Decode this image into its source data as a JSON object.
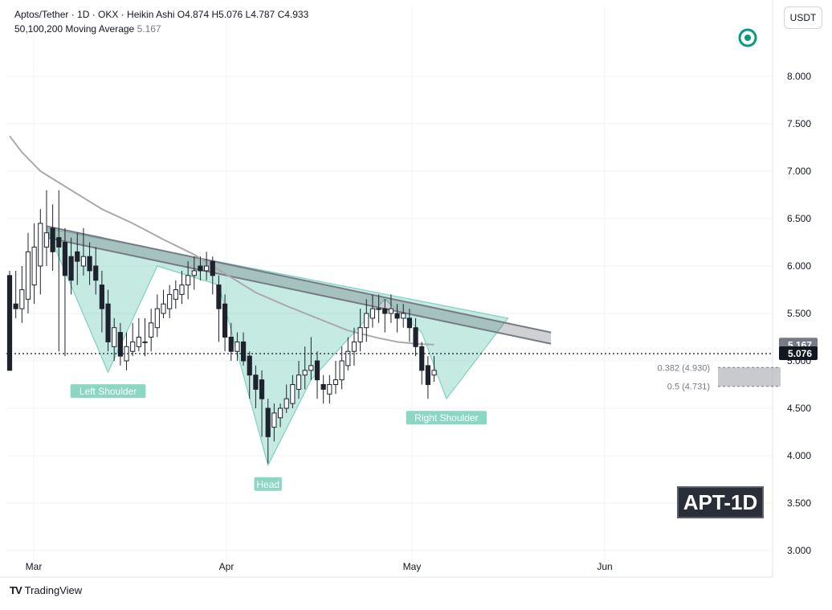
{
  "header": {
    "title": "Aptos/Tether · 1D · OKX · Heikin Ashi",
    "open_label": "O",
    "open_value": "4.874",
    "high_label": "H",
    "high_value": "5.076",
    "low_label": "L",
    "low_value": "4.787",
    "close_label": "C",
    "close_value": "4.933",
    "ma_label": "50,100,200 Moving Average",
    "ma_value": "5.167"
  },
  "currency_button": "USDT",
  "badge": "APT-1D",
  "footer": {
    "brand": "TradingView"
  },
  "colors": {
    "bull": "#26a69a",
    "bear": "#1e222d",
    "candle_up_fill": "#ffffff",
    "pattern_fill": "#7fd1be",
    "resistance_fill": "#555b66",
    "ma": "#a8aaaf",
    "fib_fill": "#b0b3b8"
  },
  "chart_data": {
    "type": "candlestick",
    "y_axis": {
      "ticks": [
        "3.000",
        "3.500",
        "4.000",
        "4.500",
        "5.000",
        "5.500",
        "6.000",
        "6.500",
        "7.000",
        "7.500",
        "8.000"
      ],
      "range": [
        2.97,
        8.65
      ]
    },
    "x_axis": {
      "ticks": [
        "Mar",
        "Apr",
        "May",
        "Jun"
      ]
    },
    "price_labels": [
      {
        "value": 5.167,
        "text": "5.167",
        "color": "#787b86"
      },
      {
        "value": 5.076,
        "text": "5.076",
        "color": "#131722"
      }
    ],
    "current_price_line": 5.076,
    "candles": [
      [
        5.9,
        4.9,
        5.95,
        5.0
      ],
      [
        5.6,
        5.55,
        5.95,
        5.45
      ],
      [
        5.55,
        5.75,
        6.0,
        5.4
      ],
      [
        5.65,
        6.15,
        6.35,
        5.5
      ],
      [
        5.8,
        6.2,
        6.45,
        5.6
      ],
      [
        6.0,
        6.45,
        6.6,
        5.7
      ],
      [
        6.2,
        6.35,
        6.8,
        6.0
      ],
      [
        6.4,
        6.15,
        6.65,
        5.95
      ],
      [
        6.3,
        6.2,
        6.8,
        5.1
      ],
      [
        6.25,
        5.9,
        6.4,
        5.05
      ],
      [
        6.1,
        5.85,
        6.3,
        5.7
      ],
      [
        6.15,
        6.05,
        6.35,
        5.8
      ],
      [
        6.0,
        6.1,
        6.4,
        5.9
      ],
      [
        6.1,
        5.95,
        6.25,
        5.8
      ],
      [
        6.0,
        5.85,
        6.2,
        5.7
      ],
      [
        5.8,
        5.55,
        5.95,
        5.3
      ],
      [
        5.6,
        5.2,
        5.75,
        5.1
      ],
      [
        5.15,
        5.35,
        5.45,
        5.0
      ],
      [
        5.3,
        5.05,
        5.4,
        4.95
      ],
      [
        5.0,
        5.15,
        5.3,
        4.9
      ],
      [
        5.1,
        5.2,
        5.4,
        5.05
      ],
      [
        5.15,
        5.25,
        5.45,
        5.1
      ],
      [
        5.2,
        5.2,
        5.45,
        5.05
      ],
      [
        5.25,
        5.4,
        5.55,
        5.1
      ],
      [
        5.35,
        5.55,
        5.7,
        5.25
      ],
      [
        5.5,
        5.6,
        5.75,
        5.45
      ],
      [
        5.55,
        5.7,
        5.8,
        5.45
      ],
      [
        5.65,
        5.75,
        5.85,
        5.55
      ],
      [
        5.7,
        5.8,
        5.95,
        5.6
      ],
      [
        5.8,
        5.9,
        6.05,
        5.65
      ],
      [
        5.9,
        5.95,
        6.1,
        5.75
      ],
      [
        6.0,
        5.95,
        6.1,
        5.85
      ],
      [
        5.95,
        6.0,
        6.15,
        5.85
      ],
      [
        6.05,
        5.9,
        6.1,
        5.7
      ],
      [
        5.8,
        5.55,
        5.9,
        5.2
      ],
      [
        5.6,
        5.25,
        5.7,
        5.1
      ],
      [
        5.25,
        5.1,
        5.4,
        5.0
      ],
      [
        5.1,
        5.2,
        5.3,
        5.0
      ],
      [
        5.2,
        5.0,
        5.3,
        4.95
      ],
      [
        5.05,
        4.85,
        5.1,
        4.6
      ],
      [
        4.85,
        4.7,
        4.95,
        4.5
      ],
      [
        4.8,
        4.6,
        4.9,
        4.2
      ],
      [
        4.5,
        4.2,
        4.6,
        3.92
      ],
      [
        4.3,
        4.45,
        4.55,
        4.15
      ],
      [
        4.4,
        4.5,
        4.55,
        4.3
      ],
      [
        4.5,
        4.6,
        4.75,
        4.45
      ],
      [
        4.55,
        4.75,
        4.85,
        4.5
      ],
      [
        4.7,
        4.85,
        5.0,
        4.6
      ],
      [
        4.85,
        4.9,
        5.15,
        4.7
      ],
      [
        4.9,
        4.95,
        5.25,
        4.8
      ],
      [
        5.0,
        4.8,
        5.1,
        4.6
      ],
      [
        4.75,
        4.7,
        4.85,
        4.55
      ],
      [
        4.65,
        4.75,
        4.85,
        4.55
      ],
      [
        4.75,
        4.8,
        5.0,
        4.65
      ],
      [
        4.8,
        5.0,
        5.15,
        4.7
      ],
      [
        4.95,
        5.1,
        5.25,
        4.9
      ],
      [
        5.1,
        5.2,
        5.35,
        4.95
      ],
      [
        5.2,
        5.35,
        5.55,
        5.1
      ],
      [
        5.35,
        5.5,
        5.65,
        5.2
      ],
      [
        5.45,
        5.55,
        5.7,
        5.35
      ],
      [
        5.55,
        5.55,
        5.7,
        5.4
      ],
      [
        5.55,
        5.5,
        5.65,
        5.3
      ],
      [
        5.5,
        5.55,
        5.7,
        5.4
      ],
      [
        5.5,
        5.45,
        5.6,
        5.3
      ],
      [
        5.45,
        5.5,
        5.6,
        5.35
      ],
      [
        5.45,
        5.35,
        5.55,
        5.2
      ],
      [
        5.35,
        5.15,
        5.45,
        5.05
      ],
      [
        5.15,
        4.9,
        5.2,
        4.75
      ],
      [
        4.95,
        4.75,
        5.05,
        4.6
      ],
      [
        4.85,
        4.9,
        5.05,
        4.78
      ]
    ],
    "moving_average": {
      "name": "50,100,200 Moving Average",
      "points": [
        [
          0,
          7.37
        ],
        [
          2,
          7.2
        ],
        [
          5,
          7.0
        ],
        [
          10,
          6.8
        ],
        [
          15,
          6.6
        ],
        [
          20,
          6.45
        ],
        [
          25,
          6.28
        ],
        [
          30,
          6.12
        ],
        [
          35,
          5.92
        ],
        [
          40,
          5.72
        ],
        [
          45,
          5.58
        ],
        [
          50,
          5.45
        ],
        [
          55,
          5.32
        ],
        [
          60,
          5.24
        ],
        [
          63,
          5.2
        ],
        [
          66,
          5.18
        ],
        [
          69,
          5.17
        ]
      ]
    },
    "resistance_channel": {
      "upper": [
        [
          6,
          6.42
        ],
        [
          88,
          5.3
        ]
      ],
      "lower": [
        [
          6,
          6.3
        ],
        [
          88,
          5.18
        ]
      ]
    },
    "pattern": {
      "name": "Inverse Head and Shoulders",
      "vertices": [
        [
          6,
          6.4
        ],
        [
          16,
          4.88
        ],
        [
          24,
          6.0
        ],
        [
          34,
          5.8
        ],
        [
          42,
          3.9
        ],
        [
          49,
          4.8
        ],
        [
          56,
          5.3
        ],
        [
          61,
          5.65
        ],
        [
          67,
          5.3
        ],
        [
          71,
          4.6
        ],
        [
          81,
          5.45
        ]
      ],
      "labels": [
        {
          "text": "Left Shoulder",
          "x": 16,
          "price": 4.88
        },
        {
          "text": "Head",
          "x": 42,
          "price": 3.9
        },
        {
          "text": "Right Shoulder",
          "x": 71,
          "price": 4.6
        }
      ]
    },
    "fib_zone": {
      "levels": [
        {
          "label": "0.382 (4.930)",
          "value": 4.93
        },
        {
          "label": "0.5 (4.731)",
          "value": 4.731
        }
      ]
    }
  }
}
